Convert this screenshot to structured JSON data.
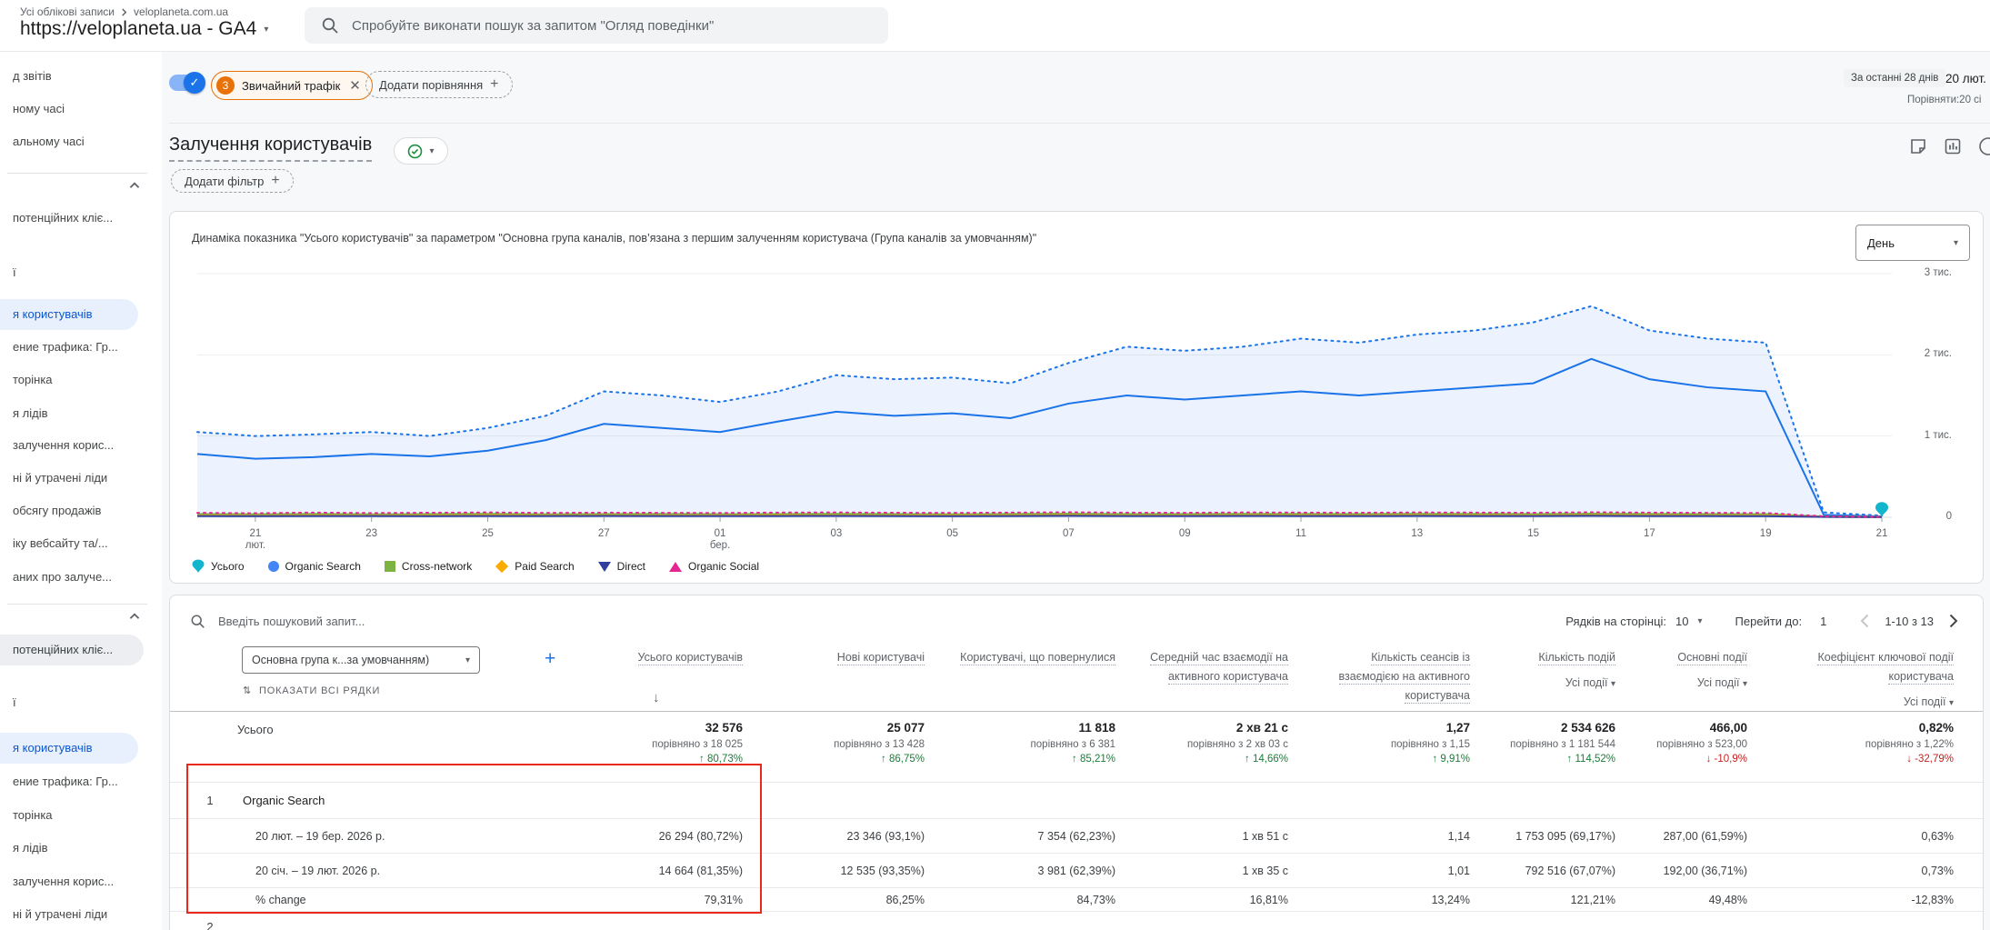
{
  "app": {
    "breadcrumb_root": "Усі облікові записи",
    "breadcrumb_property": "veloplaneta.com.ua",
    "property_title": "https://veloplaneta.ua - GA4",
    "search_placeholder": "Спробуйте виконати пошук за запитом \"Огляд поведінки\""
  },
  "sidebar": {
    "items": [
      {
        "label": "д звітів"
      },
      {
        "label": "ному часі"
      },
      {
        "label": "альному часі"
      },
      {
        "label": "потенційних кліє..."
      },
      {
        "label": "ї"
      },
      {
        "label": "я користувачів"
      },
      {
        "label": "ение трафика: Гр..."
      },
      {
        "label": "торінка"
      },
      {
        "label": "я лідів"
      },
      {
        "label": "залучення корис..."
      },
      {
        "label": "ні й утрачені ліди"
      },
      {
        "label": "обсягу продажів"
      },
      {
        "label": "іку вебсайту та/..."
      },
      {
        "label": "аних про залуче..."
      },
      {
        "label": "потенційних кліє..."
      },
      {
        "label": "ї"
      },
      {
        "label": "я користувачів"
      },
      {
        "label": "ение трафика: Гр..."
      },
      {
        "label": "торінка"
      },
      {
        "label": "я лідів"
      },
      {
        "label": "залучення корис..."
      },
      {
        "label": "ні й утрачені ліди"
      }
    ]
  },
  "filters": {
    "chip_badge": "3",
    "chip_label": "Звичайний трафік",
    "add_comparison": "Додати порівняння"
  },
  "daterange": {
    "chip": "За останні 28 днів",
    "current": "20 лют.",
    "compare": "Порівняти:20 сі"
  },
  "page": {
    "title": "Залучення користувачів",
    "add_filter": "Додати фільтр"
  },
  "chart_data": {
    "type": "line",
    "title": "Динаміка показника \"Усього користувачів\" за параметром \"Основна група каналів, пов’язана з першим залученням користувача (Група каналів за умовчанням)\"",
    "granularity": "День",
    "ylim": [
      0,
      3000
    ],
    "ytick_values": [
      0,
      1000,
      2000,
      3000
    ],
    "yticks": [
      "0",
      "1 тис.",
      "2 тис.",
      "3 тис."
    ],
    "xticks": [
      "21 лют.",
      "23",
      "25",
      "27",
      "01 бер.",
      "03",
      "05",
      "07",
      "09",
      "11",
      "13",
      "15",
      "17",
      "19",
      "21"
    ],
    "grid": true,
    "legend_position": "bottom",
    "legend": [
      {
        "name": "Усього",
        "color": "#12b5cb",
        "shape": "pin"
      },
      {
        "name": "Organic Search",
        "color": "#4285f4",
        "shape": "circle"
      },
      {
        "name": "Cross-network",
        "color": "#7cb342",
        "shape": "square"
      },
      {
        "name": "Paid Search",
        "color": "#f9ab00",
        "shape": "diamond"
      },
      {
        "name": "Direct",
        "color": "#303f9f",
        "shape": "triangle-down"
      },
      {
        "name": "Organic Social",
        "color": "#e52592",
        "shape": "triangle-up"
      }
    ],
    "series": [
      {
        "name": "Усього",
        "style": "dotted",
        "color": "#1a73e8",
        "area": true,
        "values": [
          1050,
          1000,
          1020,
          1050,
          1000,
          1100,
          1250,
          1550,
          1500,
          1420,
          1550,
          1750,
          1700,
          1720,
          1650,
          1900,
          2100,
          2050,
          2100,
          2200,
          2150,
          2250,
          2300,
          2400,
          2600,
          2300,
          2200,
          2150,
          60,
          20
        ]
      },
      {
        "name": "Organic Search",
        "style": "solid",
        "color": "#1a73e8",
        "values": [
          780,
          720,
          740,
          780,
          750,
          820,
          950,
          1150,
          1100,
          1050,
          1180,
          1300,
          1250,
          1280,
          1220,
          1400,
          1500,
          1450,
          1500,
          1550,
          1500,
          1550,
          1600,
          1650,
          1950,
          1700,
          1600,
          1550,
          30,
          10
        ]
      },
      {
        "name": "Cross-network",
        "style": "solid",
        "color": "#7cb342",
        "values": [
          40,
          38,
          42,
          36,
          40,
          44,
          38,
          40,
          42,
          39,
          41,
          43,
          40,
          38,
          42,
          45,
          41,
          40,
          43,
          42,
          40,
          44,
          42,
          41,
          45,
          42,
          40,
          39,
          10,
          5
        ]
      },
      {
        "name": "Paid Search",
        "style": "solid",
        "color": "#f9ab00",
        "values": [
          22,
          20,
          24,
          21,
          23,
          25,
          22,
          24,
          23,
          22,
          25,
          24,
          23,
          22,
          24,
          26,
          23,
          22,
          25,
          24,
          23,
          25,
          24,
          23,
          26,
          24,
          22,
          21,
          6,
          3
        ]
      },
      {
        "name": "Direct",
        "style": "solid",
        "color": "#303f9f",
        "values": [
          15,
          14,
          16,
          15,
          14,
          16,
          15,
          17,
          16,
          15,
          16,
          17,
          15,
          14,
          16,
          18,
          16,
          15,
          17,
          16,
          15,
          17,
          16,
          15,
          18,
          16,
          15,
          14,
          4,
          2
        ]
      },
      {
        "name": "Organic Social",
        "style": "dotted",
        "color": "#e52592",
        "values": [
          55,
          50,
          58,
          52,
          56,
          60,
          54,
          57,
          55,
          53,
          58,
          60,
          56,
          54,
          58,
          62,
          57,
          55,
          60,
          58,
          56,
          60,
          58,
          56,
          62,
          58,
          55,
          53,
          12,
          5
        ]
      }
    ]
  },
  "table": {
    "search_placeholder": "Введіть пошуковий запит...",
    "pagination": {
      "rows_label": "Рядків на сторінці:",
      "rows_value": "10",
      "goto_label": "Перейти до:",
      "goto_value": "1",
      "range": "1-10 з 13"
    },
    "dimension_selector": "Основна група к...за умовчанням)",
    "show_all_rows": "ПОКАЗАТИ ВСІ РЯДКИ",
    "columns": [
      {
        "label": "Усього користувачів"
      },
      {
        "label": "Нові користувачі"
      },
      {
        "label": "Користувачі, що повернулися"
      },
      {
        "label": "Середній час взаємодії на активного користувача"
      },
      {
        "label": "Кількість сеансів із взаємодією на активного користувача"
      },
      {
        "label": "Кількість подій",
        "filter": "Усі події"
      },
      {
        "label": "Основні події",
        "filter": "Усі події"
      },
      {
        "label": "Коефіцієнт ключової події користувача",
        "filter": "Усі події"
      }
    ],
    "totals": {
      "label": "Усього",
      "cells": [
        {
          "main": "32 576",
          "cmp": "порівняно з 18 025",
          "pct": "↑ 80,73%"
        },
        {
          "main": "25 077",
          "cmp": "порівняно з 13 428",
          "pct": "↑ 86,75%"
        },
        {
          "main": "11 818",
          "cmp": "порівняно з 6 381",
          "pct": "↑ 85,21%"
        },
        {
          "main": "2 хв 21 с",
          "cmp": "порівняно з 2 хв 03 с",
          "pct": "↑ 14,66%"
        },
        {
          "main": "1,27",
          "cmp": "порівняно з 1,15",
          "pct": "↑ 9,91%"
        },
        {
          "main": "2 534 626",
          "cmp": "порівняно з 1 181 544",
          "pct": "↑ 114,52%"
        },
        {
          "main": "466,00",
          "cmp": "порівняно з 523,00",
          "pct": "↓ -10,9%"
        },
        {
          "main": "0,82%",
          "cmp": "порівняно з 1,22%",
          "pct": "↓ -32,79%"
        }
      ]
    },
    "rows": [
      {
        "num": "1",
        "dim": "Organic Search",
        "sub": [
          {
            "label": "20 лют. – 19 бер. 2026 р.",
            "cells": [
              "26 294 (80,72%)",
              "23 346 (93,1%)",
              "7 354 (62,23%)",
              "1 хв 51 с",
              "1,14",
              "1 753 095 (69,17%)",
              "287,00 (61,59%)",
              "0,63%"
            ]
          },
          {
            "label": "20 січ. – 19 лют. 2026 р.",
            "cells": [
              "14 664 (81,35%)",
              "12 535 (93,35%)",
              "3 981 (62,39%)",
              "1 хв 35 с",
              "1,01",
              "792 516 (67,07%)",
              "192,00 (36,71%)",
              "0,73%"
            ]
          },
          {
            "label": "% change",
            "cells": [
              "79,31%",
              "86,25%",
              "84,73%",
              "16,81%",
              "13,24%",
              "121,21%",
              "49,48%",
              "-12,83%"
            ]
          }
        ]
      }
    ],
    "next_row": {
      "num": "2"
    }
  },
  "colors": {
    "accent_blue": "#1a73e8",
    "active_item_blue": "#0b57d0",
    "chip_orange": "#e8710a",
    "positive_green": "#188038",
    "negative_red": "#c5221f",
    "annotation_red": "#e8291c",
    "total_pin": "#12b5cb"
  }
}
